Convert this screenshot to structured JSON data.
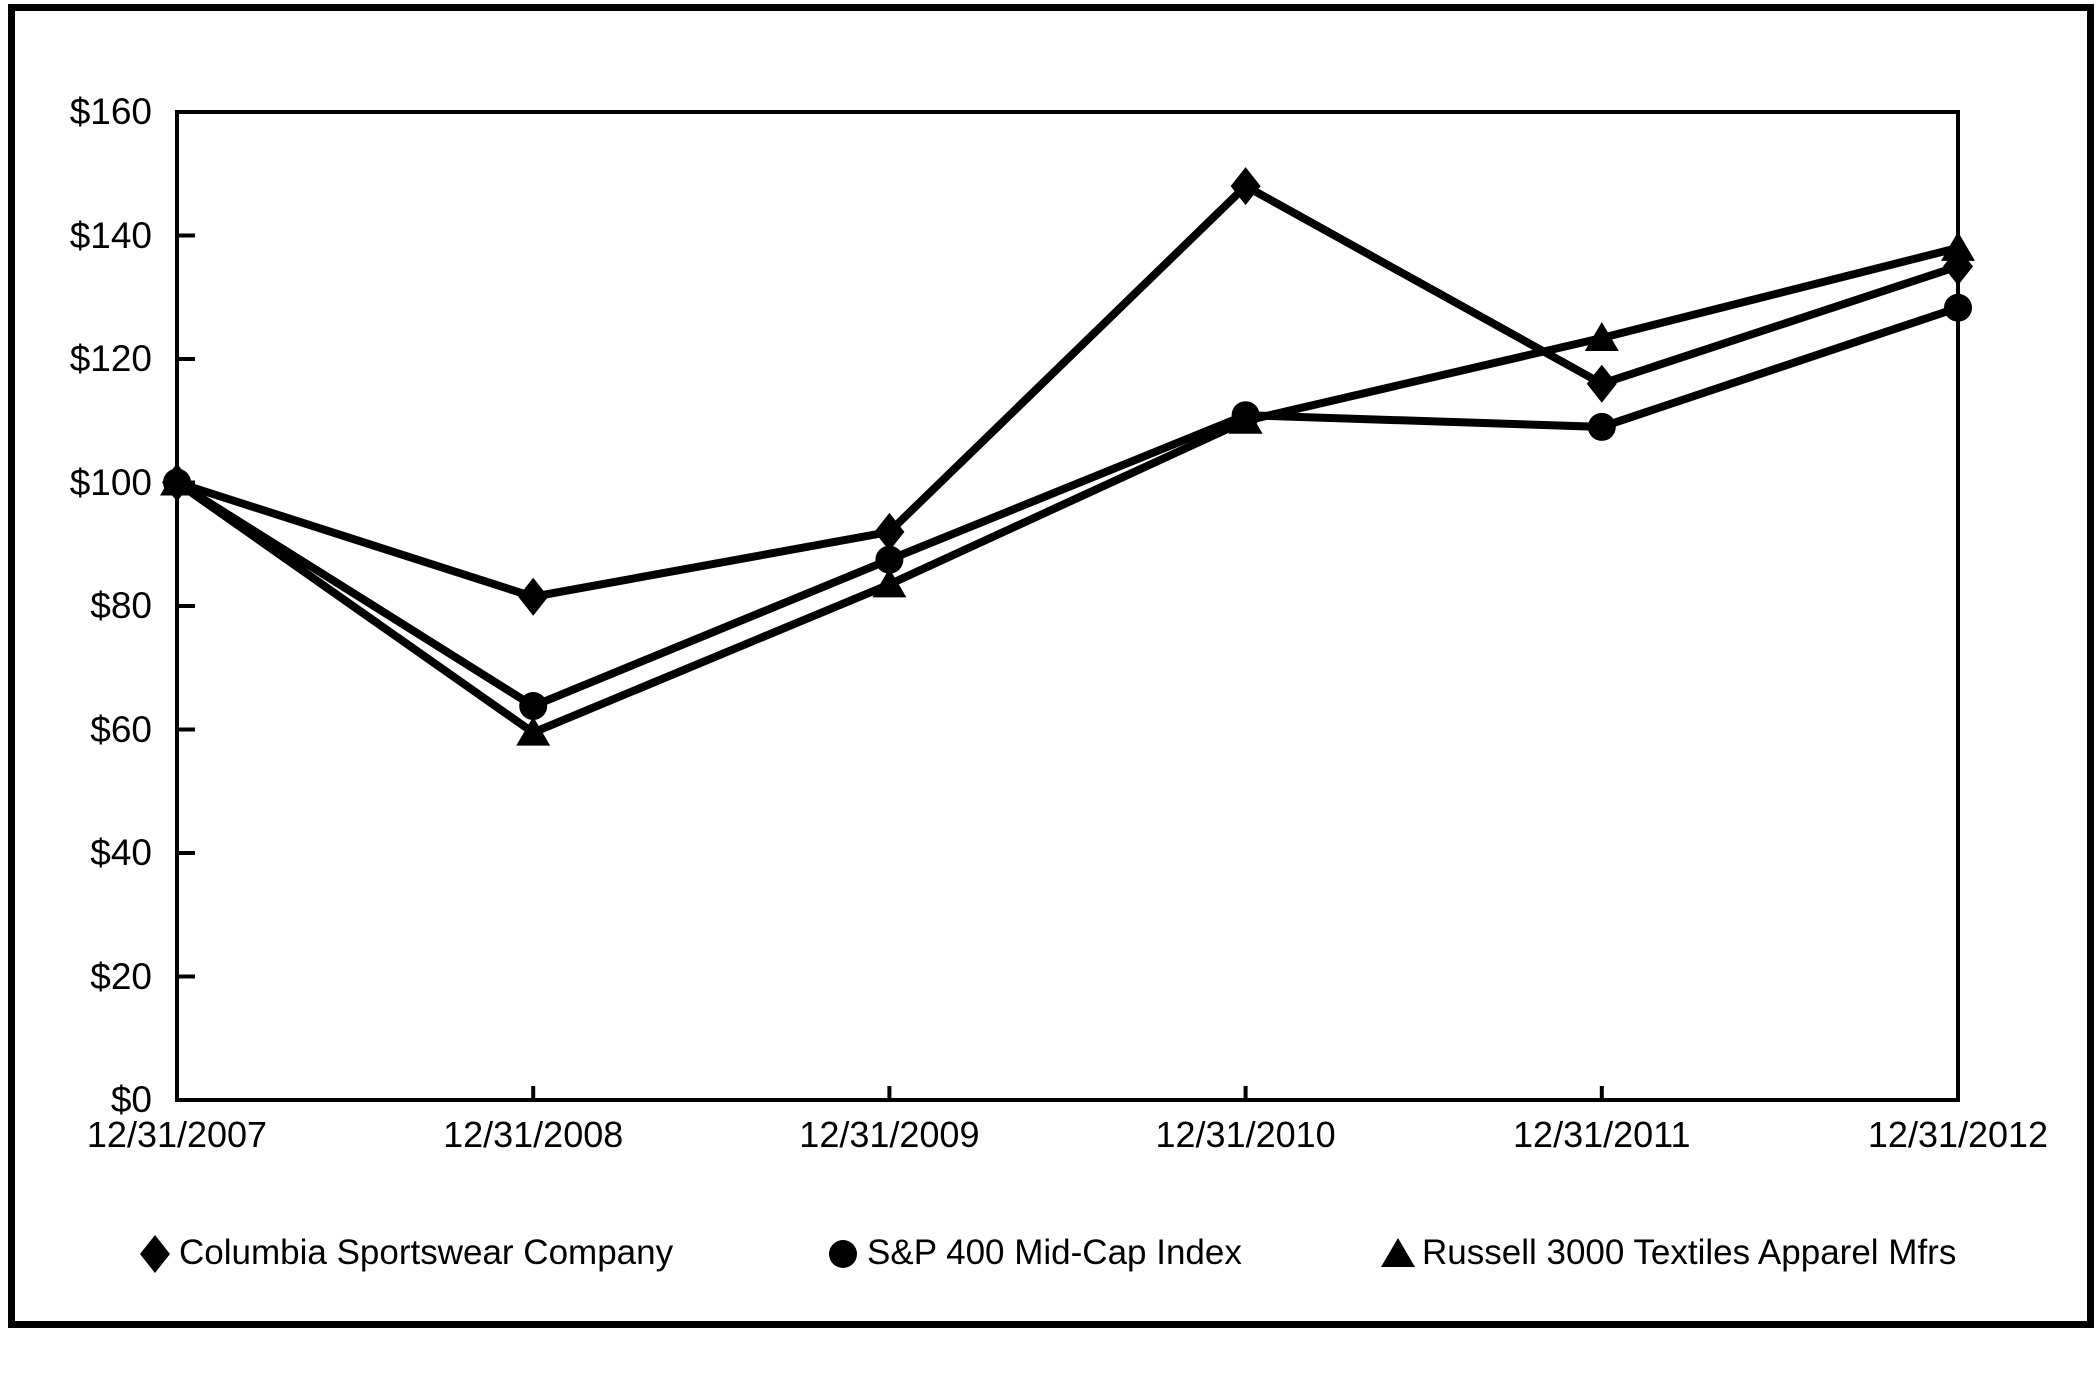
{
  "chart_data": {
    "type": "line",
    "title": "",
    "categories": [
      "12/31/2007",
      "12/31/2008",
      "12/31/2009",
      "12/31/2010",
      "12/31/2011",
      "12/31/2012"
    ],
    "series": [
      {
        "name": "Columbia Sportswear Company",
        "marker": "diamond",
        "values": [
          100,
          81.5,
          92,
          148,
          116,
          135
        ]
      },
      {
        "name": "S&P 400 Mid-Cap Index",
        "marker": "circle",
        "values": [
          100,
          63.8,
          87.5,
          110.9,
          109,
          128.3
        ]
      },
      {
        "name": "Russell 3000 Textiles Apparel Mfrs",
        "marker": "triangle",
        "values": [
          100,
          59.5,
          83.5,
          110,
          123.4,
          138
        ]
      }
    ],
    "xlabel": "",
    "ylabel": "",
    "ylim": [
      0,
      160
    ],
    "ytick_step": 20,
    "ytick_labels": [
      "$0",
      "$20",
      "$40",
      "$60",
      "$80",
      "$100",
      "$120",
      "$140",
      "$160"
    ],
    "grid": false,
    "legend_position": "bottom",
    "line_color": "#000000",
    "background_color": "#ffffff"
  }
}
